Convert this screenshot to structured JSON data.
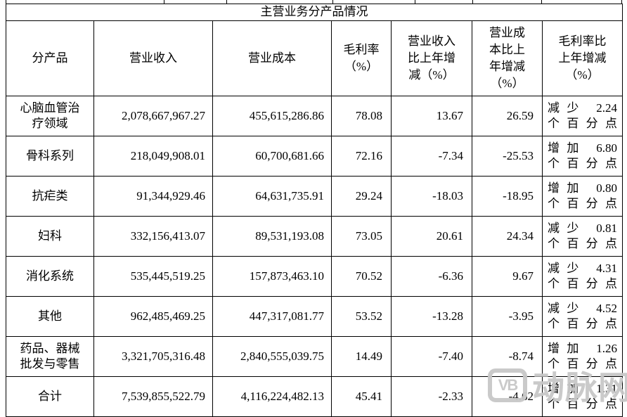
{
  "table": {
    "title": "主营业务分产品情况",
    "headers": [
      "分产品",
      "营业收入",
      "营业成本",
      "毛利率\n（%）",
      "营业收入\n比上年增\n减（%）",
      "营业成\n本比上\n年增减\n（%）",
      "毛利率比\n上年增减\n（%）"
    ],
    "rows": [
      [
        "心脑血管治\n疗领域",
        "2,078,667,967.27",
        "455,615,286.86",
        "78.08",
        "13.67",
        "26.59",
        "减少 2.24\n个百分点"
      ],
      [
        "骨科系列",
        "218,049,908.01",
        "60,700,681.66",
        "72.16",
        "-7.34",
        "-25.53",
        "增加 6.80\n个百分点"
      ],
      [
        "抗疟类",
        "91,344,929.46",
        "64,631,735.91",
        "29.24",
        "-18.03",
        "-18.95",
        "增加 0.80\n个百分点"
      ],
      [
        "妇科",
        "332,156,413.07",
        "89,531,193.08",
        "73.05",
        "20.61",
        "24.34",
        "减少 0.81\n个百分点"
      ],
      [
        "消化系统",
        "535,445,519.25",
        "157,873,463.10",
        "70.52",
        "-6.36",
        "9.67",
        "减少 4.31\n个百分点"
      ],
      [
        "其他",
        "962,485,469.25",
        "447,317,081.77",
        "53.52",
        "-13.28",
        "-3.95",
        "减少 4.52\n个百分点"
      ],
      [
        "药品、器械\n批发与零售",
        "3,321,705,316.48",
        "2,840,555,039.75",
        "14.49",
        "-7.40",
        "-8.74",
        "增加 1.26\n个百分点"
      ],
      [
        "合计",
        "7,539,855,522.79",
        "4,116,224,482.13",
        "45.41",
        "-2.33",
        "-4.62",
        "增加 1.31\n个百分点"
      ]
    ]
  },
  "watermark": {
    "logo_text": "VB",
    "text": "动脉网"
  },
  "colors": {
    "border": "#000000",
    "text": "#000000",
    "watermark": "#c8c8c8",
    "background": "#ffffff"
  }
}
